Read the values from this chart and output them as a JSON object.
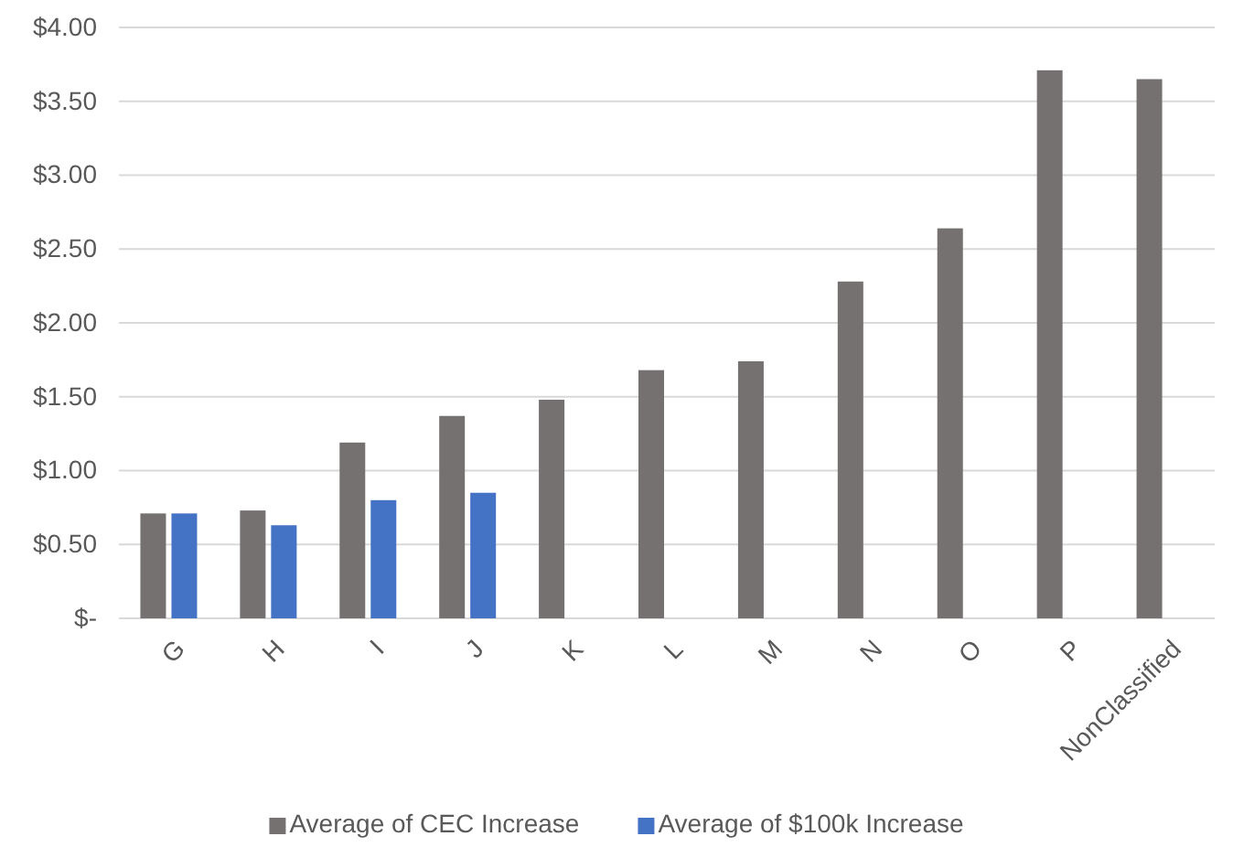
{
  "chart_data": {
    "type": "bar",
    "categories": [
      "G",
      "H",
      "I",
      "J",
      "K",
      "L",
      "M",
      "N",
      "O",
      "P",
      "NonClassified"
    ],
    "series": [
      {
        "name": "Average of CEC Increase",
        "color": "#767171",
        "values": [
          0.71,
          0.73,
          1.19,
          1.37,
          1.48,
          1.68,
          1.74,
          2.28,
          2.64,
          3.71,
          3.65
        ]
      },
      {
        "name": "Average of $100k Increase",
        "color": "#4472c4",
        "values": [
          0.71,
          0.63,
          0.8,
          0.85,
          null,
          null,
          null,
          null,
          null,
          null,
          null
        ]
      }
    ],
    "ylim": [
      0,
      4
    ],
    "yticks": [
      {
        "value": 0,
        "label": "$-"
      },
      {
        "value": 0.5,
        "label": "$0.50"
      },
      {
        "value": 1,
        "label": "$1.00"
      },
      {
        "value": 1.5,
        "label": "$1.50"
      },
      {
        "value": 2,
        "label": "$2.00"
      },
      {
        "value": 2.5,
        "label": "$2.50"
      },
      {
        "value": 3,
        "label": "$3.00"
      },
      {
        "value": 3.5,
        "label": "$3.50"
      },
      {
        "value": 4,
        "label": "$4.00"
      }
    ],
    "grid": "y",
    "legend": "bottom"
  }
}
